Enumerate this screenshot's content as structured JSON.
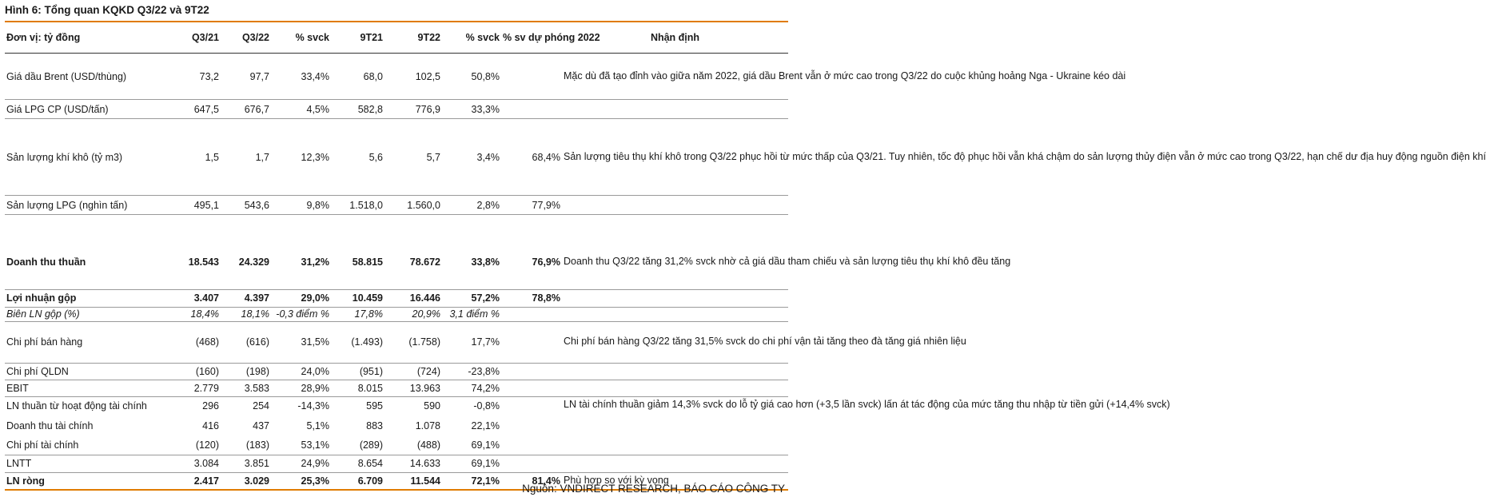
{
  "title": "Hình 6: Tổng quan KQKD Q3/22 và 9T22",
  "headers": [
    "Đơn vị: tỷ đồng",
    "Q3/21",
    "Q3/22",
    "% svck",
    "9T21",
    "9T22",
    "% svck",
    "% sv dự phóng 2022",
    "Nhận định"
  ],
  "rows": [
    {
      "label": "Giá dầu Brent (USD/thùng)",
      "q321": "73,2",
      "q322": "97,7",
      "yoy_q": "33,4%",
      "t921": "68,0",
      "t922": "102,5",
      "yoy_t": "50,8%",
      "fc": ""
    },
    {
      "label": "Giá LPG CP (USD/tấn)",
      "q321": "647,5",
      "q322": "676,7",
      "yoy_q": "4,5%",
      "t921": "582,8",
      "t922": "776,9",
      "yoy_t": "33,3%",
      "fc": ""
    },
    {
      "label": "Sản lượng khí khô (tỷ m3)",
      "q321": "1,5",
      "q322": "1,7",
      "yoy_q": "12,3%",
      "t921": "5,6",
      "t922": "5,7",
      "yoy_t": "3,4%",
      "fc": "68,4%"
    },
    {
      "label": "Sản lượng LPG (nghìn tấn)",
      "q321": "495,1",
      "q322": "543,6",
      "yoy_q": "9,8%",
      "t921": "1.518,0",
      "t922": "1.560,0",
      "yoy_t": "2,8%",
      "fc": "77,9%"
    },
    {
      "label": "Doanh thu thuần",
      "q321": "18.543",
      "q322": "24.329",
      "yoy_q": "31,2%",
      "t921": "58.815",
      "t922": "78.672",
      "yoy_t": "33,8%",
      "fc": "76,9%"
    },
    {
      "label": "Lợi nhuận gộp",
      "q321": "3.407",
      "q322": "4.397",
      "yoy_q": "29,0%",
      "t921": "10.459",
      "t922": "16.446",
      "yoy_t": "57,2%",
      "fc": "78,8%"
    },
    {
      "label": "Biên LN gộp (%)",
      "q321": "18,4%",
      "q322": "18,1%",
      "yoy_q": "-0,3 điểm %",
      "t921": "17,8%",
      "t922": "20,9%",
      "yoy_t": "3,1 điểm %",
      "fc": ""
    },
    {
      "label": "Chi phí bán hàng",
      "q321": "(468)",
      "q322": "(616)",
      "yoy_q": "31,5%",
      "t921": "(1.493)",
      "t922": "(1.758)",
      "yoy_t": "17,7%",
      "fc": ""
    },
    {
      "label": "Chi phí QLDN",
      "q321": "(160)",
      "q322": "(198)",
      "yoy_q": "24,0%",
      "t921": "(951)",
      "t922": "(724)",
      "yoy_t": "-23,8%",
      "fc": ""
    },
    {
      "label": "EBIT",
      "q321": "2.779",
      "q322": "3.583",
      "yoy_q": "28,9%",
      "t921": "8.015",
      "t922": "13.963",
      "yoy_t": "74,2%",
      "fc": ""
    },
    {
      "label": "LN thuần từ hoạt động tài chính",
      "q321": "296",
      "q322": "254",
      "yoy_q": "-14,3%",
      "t921": "595",
      "t922": "590",
      "yoy_t": "-0,8%",
      "fc": ""
    },
    {
      "label": "Doanh thu tài chính",
      "q321": "416",
      "q322": "437",
      "yoy_q": "5,1%",
      "t921": "883",
      "t922": "1.078",
      "yoy_t": "22,1%",
      "fc": ""
    },
    {
      "label": "Chi phí tài chính",
      "q321": "(120)",
      "q322": "(183)",
      "yoy_q": "53,1%",
      "t921": "(289)",
      "t922": "(488)",
      "yoy_t": "69,1%",
      "fc": ""
    },
    {
      "label": "LNTT",
      "q321": "3.084",
      "q322": "3.851",
      "yoy_q": "24,9%",
      "t921": "8.654",
      "t922": "14.633",
      "yoy_t": "69,1%",
      "fc": ""
    },
    {
      "label": "LN ròng",
      "q321": "2.417",
      "q322": "3.029",
      "yoy_q": "25,3%",
      "t921": "6.709",
      "t922": "11.544",
      "yoy_t": "72,1%",
      "fc": "81,4%"
    }
  ],
  "notes": [
    "Mặc dù đã tạo đỉnh vào giữa năm 2022, giá dầu Brent vẫn ở mức cao trong Q3/22 do cuộc khủng hoảng Nga - Ukraine kéo dài",
    "Sản lượng tiêu thụ khí khô trong Q3/22 phục hồi từ mức thấp của Q3/21. Tuy nhiên, tốc độ phục hồi vẫn khá chậm do sản lượng thủy điện vẫn ở mức cao trong Q3/22, hạn chế dư địa huy động nguồn điện khí",
    "Doanh thu Q3/22 tăng 31,2% svck nhờ cả giá dầu tham chiếu và sản lượng tiêu thụ khí khô đều tăng",
    "Chi phí bán hàng Q3/22 tăng 31,5% svck do chi phí vận tải tăng theo đà tăng giá nhiên liệu",
    "LN tài chính thuần giảm 14,3% svck do lỗ tỷ giá cao hơn (+3,5 lần svck) lấn át tác động của mức tăng thu nhập từ tiền gửi (+14,4% svck)",
    "Phù hợp so với kỳ vọng"
  ],
  "source": "Nguồn: VNDIRECT RESEARCH, BÁO CÁO CÔNG TY"
}
